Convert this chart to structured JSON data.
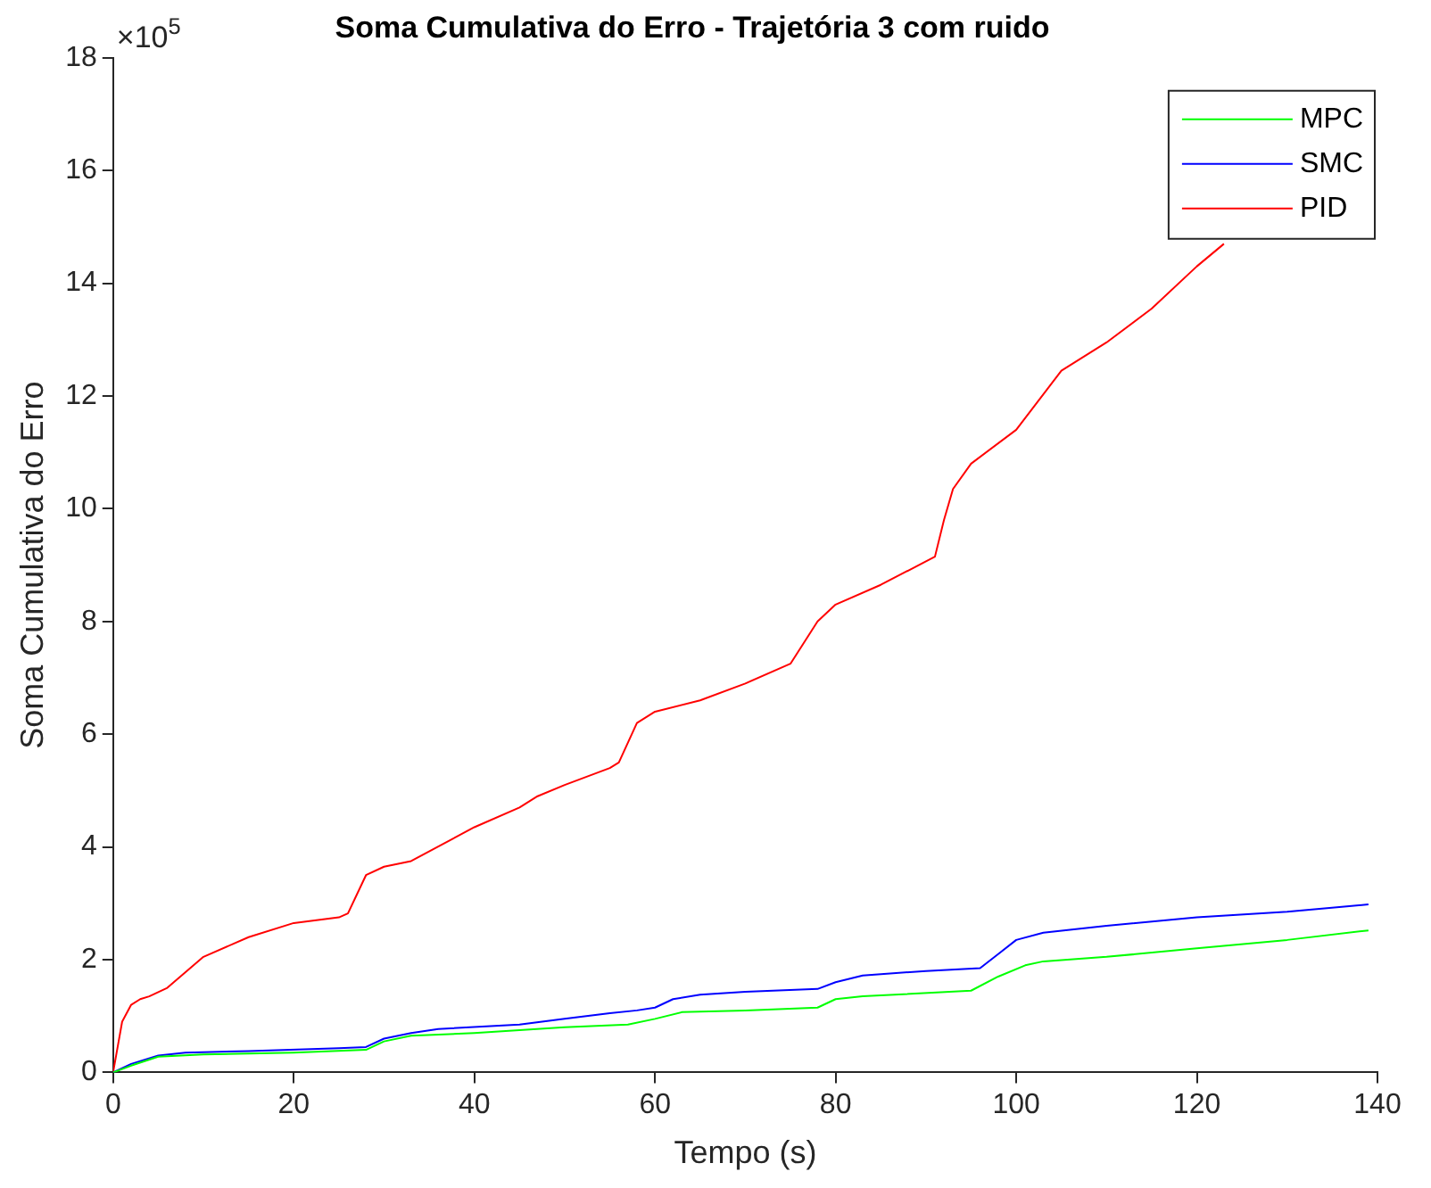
{
  "chart_data": {
    "type": "line",
    "title": "Soma Cumulativa do Erro - Trajetória 3 com ruido",
    "xlabel": "Tempo (s)",
    "ylabel": "Soma Cumulativa do Erro",
    "annotations": [
      "×10$^{5}$"
    ],
    "xlim": [
      0,
      140
    ],
    "xticks": [
      0,
      20,
      40,
      60,
      80,
      100,
      120,
      140
    ],
    "ylim": [
      0,
      18
    ],
    "yticks": [
      0,
      2,
      4,
      6,
      8,
      10,
      12,
      14,
      16,
      18
    ],
    "grid": false,
    "legend": "top right",
    "marker": "none",
    "line_style": "solid",
    "series": [
      {
        "name": "MPC",
        "color": "#00ff00",
        "x": [
          0,
          2,
          5,
          10,
          20,
          28,
          30,
          33,
          40,
          50,
          57,
          60,
          63,
          70,
          78,
          80,
          83,
          95,
          98,
          101,
          103,
          110,
          120,
          130,
          139
        ],
        "values": [
          0,
          0.12,
          0.28,
          0.32,
          0.35,
          0.4,
          0.55,
          0.65,
          0.7,
          0.8,
          0.85,
          0.95,
          1.07,
          1.1,
          1.15,
          1.3,
          1.35,
          1.45,
          1.7,
          1.9,
          1.97,
          2.05,
          2.2,
          2.35,
          2.52
        ]
      },
      {
        "name": "SMC",
        "color": "#0000ff",
        "x": [
          0,
          2,
          5,
          8,
          15,
          25,
          28,
          30,
          33,
          36,
          45,
          50,
          55,
          58,
          60,
          62,
          65,
          70,
          78,
          80,
          83,
          90,
          96,
          98,
          100,
          103,
          110,
          120,
          130,
          139
        ],
        "values": [
          0,
          0.15,
          0.3,
          0.35,
          0.38,
          0.43,
          0.45,
          0.6,
          0.7,
          0.77,
          0.85,
          0.95,
          1.05,
          1.1,
          1.15,
          1.3,
          1.38,
          1.43,
          1.48,
          1.6,
          1.72,
          1.8,
          1.85,
          2.1,
          2.35,
          2.48,
          2.6,
          2.75,
          2.85,
          2.98
        ]
      },
      {
        "name": "PID",
        "color": "#ff0000",
        "x": [
          0,
          1,
          2,
          3,
          4,
          6,
          10,
          15,
          20,
          25,
          26,
          28,
          30,
          33,
          40,
          45,
          47,
          50,
          55,
          56,
          58,
          60,
          65,
          70,
          75,
          78,
          80,
          85,
          91,
          92,
          93,
          95,
          100,
          105,
          110,
          115,
          120,
          123
        ],
        "values": [
          0,
          0.9,
          1.2,
          1.3,
          1.35,
          1.5,
          2.05,
          2.4,
          2.65,
          2.75,
          2.82,
          3.5,
          3.65,
          3.75,
          4.35,
          4.7,
          4.9,
          5.1,
          5.4,
          5.5,
          6.2,
          6.4,
          6.6,
          6.9,
          7.25,
          8.0,
          8.3,
          8.65,
          9.15,
          9.8,
          10.35,
          10.8,
          11.4,
          12.45,
          12.95,
          13.55,
          14.3,
          14.7
        ]
      }
    ]
  }
}
